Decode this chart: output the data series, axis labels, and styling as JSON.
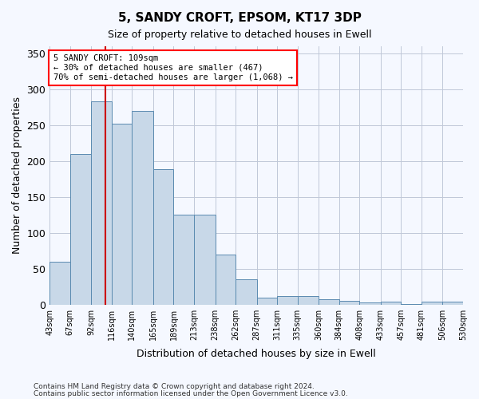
{
  "title": "5, SANDY CROFT, EPSOM, KT17 3DP",
  "subtitle": "Size of property relative to detached houses in Ewell",
  "xlabel": "Distribution of detached houses by size in Ewell",
  "ylabel": "Number of detached properties",
  "footnote1": "Contains HM Land Registry data © Crown copyright and database right 2024.",
  "footnote2": "Contains public sector information licensed under the Open Government Licence v3.0.",
  "annotation_line1": "5 SANDY CROFT: 109sqm",
  "annotation_line2": "← 30% of detached houses are smaller (467)",
  "annotation_line3": "70% of semi-detached houses are larger (1,068) →",
  "property_size": 109,
  "bar_color": "#c8d8e8",
  "bar_edge_color": "#5a8ab0",
  "redline_color": "#cc0000",
  "background_color": "#f5f8ff",
  "grid_color": "#c0c8d8",
  "tick_labels": [
    "43sqm",
    "67sqm",
    "92sqm",
    "116sqm",
    "140sqm",
    "165sqm",
    "189sqm",
    "213sqm",
    "238sqm",
    "262sqm",
    "287sqm",
    "311sqm",
    "335sqm",
    "360sqm",
    "384sqm",
    "408sqm",
    "433sqm",
    "457sqm",
    "481sqm",
    "506sqm",
    "530sqm"
  ],
  "bin_edges": [
    43,
    67,
    92,
    116,
    140,
    165,
    189,
    213,
    238,
    262,
    287,
    311,
    335,
    360,
    384,
    408,
    433,
    457,
    481,
    506,
    530
  ],
  "bar_heights": [
    60,
    210,
    283,
    252,
    270,
    188,
    125,
    125,
    70,
    35,
    10,
    12,
    12,
    7,
    5,
    3,
    4,
    1,
    4,
    4
  ],
  "ylim": [
    0,
    360
  ],
  "yticks": [
    0,
    50,
    100,
    150,
    200,
    250,
    300,
    350
  ]
}
